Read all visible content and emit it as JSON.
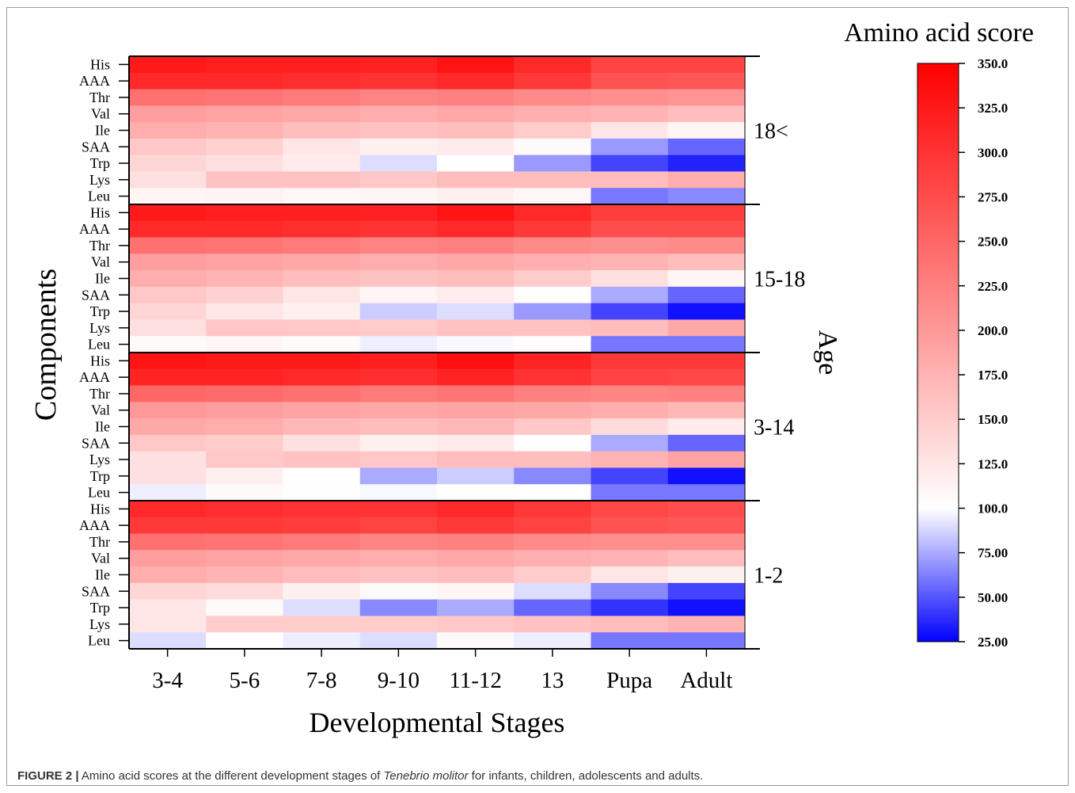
{
  "chart_data": {
    "type": "heatmap",
    "xlabel": "Developmental Stages",
    "ylabel": "Components",
    "group_axis_label": "Age",
    "x_categories": [
      "3-4",
      "5-6",
      "7-8",
      "9-10",
      "11-12",
      "13",
      "Pupa",
      "Adult"
    ],
    "colorbar": {
      "title": "Amino acid score",
      "min": 25,
      "max": 350,
      "midpoint": 100,
      "tick_labels": [
        "350.0",
        "325.0",
        "300.0",
        "275.0",
        "250.0",
        "225.0",
        "200.0",
        "175.0",
        "150.0",
        "125.0",
        "100.0",
        "75.00",
        "50.00",
        "25.00"
      ],
      "colors": {
        "low": "#0000ff",
        "mid": "#ffffff",
        "high": "#ff0000"
      }
    },
    "groups": [
      {
        "age": "18<",
        "rows": [
          {
            "component": "His",
            "values": [
              325,
              320,
              320,
              318,
              330,
              310,
              285,
              285
            ]
          },
          {
            "component": "AAA",
            "values": [
              310,
              310,
              305,
              300,
              310,
              295,
              270,
              265
            ]
          },
          {
            "component": "Thr",
            "values": [
              240,
              235,
              230,
              220,
              225,
              215,
              210,
              205
            ]
          },
          {
            "component": "Val",
            "values": [
              195,
              190,
              185,
              180,
              185,
              178,
              175,
              165
            ]
          },
          {
            "component": "Ile",
            "values": [
              180,
              175,
              165,
              160,
              165,
              150,
              125,
              110
            ]
          },
          {
            "component": "SAA",
            "values": [
              155,
              145,
              125,
              115,
              120,
              105,
              70,
              55
            ]
          },
          {
            "component": "Trp",
            "values": [
              140,
              130,
              120,
              90,
              100,
              70,
              45,
              35
            ]
          },
          {
            "component": "Lys",
            "values": [
              130,
              160,
              160,
              155,
              165,
              165,
              165,
              180
            ]
          },
          {
            "component": "Leu",
            "values": [
              110,
              112,
              108,
              110,
              115,
              108,
              60,
              65
            ]
          }
        ]
      },
      {
        "age": "15-18",
        "rows": [
          {
            "component": "His",
            "values": [
              325,
              320,
              320,
              318,
              330,
              310,
              290,
              290
            ]
          },
          {
            "component": "AAA",
            "values": [
              310,
              310,
              305,
              300,
              310,
              295,
              275,
              275
            ]
          },
          {
            "component": "Thr",
            "values": [
              240,
              235,
              230,
              220,
              225,
              215,
              210,
              215
            ]
          },
          {
            "component": "Val",
            "values": [
              195,
              190,
              185,
              180,
              185,
              178,
              175,
              165
            ]
          },
          {
            "component": "Ile",
            "values": [
              180,
              175,
              165,
              160,
              165,
              150,
              130,
              110
            ]
          },
          {
            "component": "SAA",
            "values": [
              155,
              145,
              125,
              110,
              118,
              102,
              75,
              55
            ]
          },
          {
            "component": "Trp",
            "values": [
              140,
              125,
              115,
              85,
              90,
              70,
              45,
              30
            ]
          },
          {
            "component": "Lys",
            "values": [
              130,
              155,
              155,
              150,
              160,
              160,
              165,
              185
            ]
          },
          {
            "component": "Leu",
            "values": [
              105,
              108,
              104,
              95,
              98,
              102,
              60,
              60
            ]
          }
        ]
      },
      {
        "age": "3-14",
        "rows": [
          {
            "component": "His",
            "values": [
              330,
              325,
              325,
              320,
              335,
              315,
              295,
              295
            ]
          },
          {
            "component": "AAA",
            "values": [
              315,
              315,
              310,
              305,
              315,
              300,
              285,
              280
            ]
          },
          {
            "component": "Thr",
            "values": [
              250,
              245,
              240,
              230,
              235,
              225,
              220,
              225
            ]
          },
          {
            "component": "Val",
            "values": [
              200,
              195,
              190,
              185,
              190,
              185,
              180,
              170
            ]
          },
          {
            "component": "Ile",
            "values": [
              185,
              180,
              170,
              165,
              170,
              155,
              135,
              120
            ]
          },
          {
            "component": "SAA",
            "values": [
              155,
              150,
              130,
              115,
              120,
              102,
              75,
              55
            ]
          },
          {
            "component": "Lys",
            "values": [
              130,
              155,
              160,
              155,
              165,
              165,
              175,
              190
            ]
          },
          {
            "component": "Trp",
            "values": [
              130,
              115,
              100,
              75,
              85,
              65,
              45,
              30
            ]
          },
          {
            "component": "Leu",
            "values": [
              95,
              105,
              102,
              98,
              100,
              100,
              60,
              60
            ]
          }
        ]
      },
      {
        "age": "1-2",
        "rows": [
          {
            "component": "His",
            "values": [
              310,
              305,
              300,
              300,
              310,
              295,
              280,
              275
            ]
          },
          {
            "component": "AAA",
            "values": [
              295,
              295,
              290,
              285,
              295,
              285,
              270,
              265
            ]
          },
          {
            "component": "Thr",
            "values": [
              240,
              235,
              230,
              220,
              225,
              215,
              210,
              210
            ]
          },
          {
            "component": "Val",
            "values": [
              195,
              190,
              185,
              180,
              185,
              178,
              175,
              165
            ]
          },
          {
            "component": "Ile",
            "values": [
              180,
              175,
              165,
              160,
              165,
              150,
              125,
              115
            ]
          },
          {
            "component": "SAA",
            "values": [
              140,
              135,
              115,
              105,
              110,
              90,
              65,
              45
            ]
          },
          {
            "component": "Trp",
            "values": [
              125,
              105,
              90,
              65,
              75,
              55,
              40,
              30
            ]
          },
          {
            "component": "Lys",
            "values": [
              125,
              150,
              150,
              150,
              155,
              160,
              165,
              175
            ]
          },
          {
            "component": "Leu",
            "values": [
              90,
              100,
              95,
              90,
              105,
              95,
              60,
              60
            ]
          }
        ]
      }
    ]
  },
  "caption": {
    "label": "FIGURE 2 |",
    "text_before": " Amino acid scores at the different development stages of ",
    "species": "Tenebrio molitor",
    "text_after": " for infants, children, adolescents and adults."
  }
}
